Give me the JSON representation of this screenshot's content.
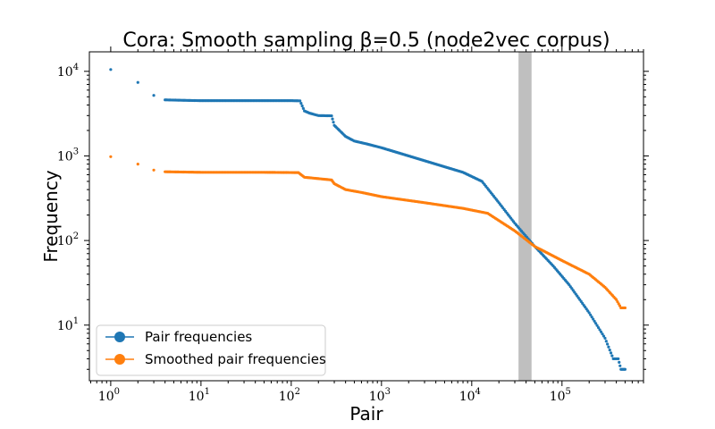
{
  "chart_data": {
    "type": "scatter",
    "title": "Cora: Smooth sampling β=0.5 (node2vec corpus)",
    "xlabel": "Pair",
    "ylabel": "Frequency",
    "xscale": "log",
    "yscale": "log",
    "xlim": [
      0.58,
      800000
    ],
    "ylim": [
      2.2,
      17000
    ],
    "x_ticks": [
      {
        "value": 1,
        "base": "10",
        "exp": "0"
      },
      {
        "value": 10,
        "base": "10",
        "exp": "1"
      },
      {
        "value": 100,
        "base": "10",
        "exp": "2"
      },
      {
        "value": 1000,
        "base": "10",
        "exp": "3"
      },
      {
        "value": 10000,
        "base": "10",
        "exp": "4"
      },
      {
        "value": 100000,
        "base": "10",
        "exp": "5"
      }
    ],
    "y_ticks": [
      {
        "value": 10,
        "base": "10",
        "exp": "1"
      },
      {
        "value": 100,
        "base": "10",
        "exp": "2"
      },
      {
        "value": 1000,
        "base": "10",
        "exp": "3"
      },
      {
        "value": 10000,
        "base": "10",
        "exp": "4"
      }
    ],
    "shaded_band": {
      "x_start": 33000,
      "x_end": 46000,
      "color": "#bfbfbf"
    },
    "legend_position": "lower-left",
    "series": [
      {
        "name": "Pair frequencies",
        "color": "#1f77b4",
        "points": [
          [
            1,
            10500
          ],
          [
            2,
            7400
          ],
          [
            3,
            5200
          ],
          [
            4,
            4600
          ],
          [
            6,
            4550
          ],
          [
            10,
            4500
          ],
          [
            30,
            4500
          ],
          [
            100,
            4500
          ],
          [
            125,
            4480
          ],
          [
            140,
            3400
          ],
          [
            160,
            3200
          ],
          [
            200,
            3000
          ],
          [
            280,
            2980
          ],
          [
            300,
            2300
          ],
          [
            400,
            1700
          ],
          [
            500,
            1500
          ],
          [
            700,
            1380
          ],
          [
            1000,
            1250
          ],
          [
            2000,
            1000
          ],
          [
            4000,
            800
          ],
          [
            8000,
            640
          ],
          [
            13000,
            500
          ],
          [
            20000,
            280
          ],
          [
            30000,
            160
          ],
          [
            50000,
            85
          ],
          [
            80000,
            50
          ],
          [
            120000,
            30
          ],
          [
            200000,
            14
          ],
          [
            300000,
            7
          ],
          [
            370000,
            4
          ],
          [
            420000,
            4
          ],
          [
            450000,
            3
          ],
          [
            500000,
            3
          ]
        ]
      },
      {
        "name": "Smoothed pair frequencies",
        "color": "#ff7f0e",
        "points": [
          [
            1,
            980
          ],
          [
            2,
            800
          ],
          [
            3,
            680
          ],
          [
            4,
            650
          ],
          [
            10,
            640
          ],
          [
            50,
            640
          ],
          [
            120,
            635
          ],
          [
            140,
            560
          ],
          [
            280,
            520
          ],
          [
            300,
            470
          ],
          [
            400,
            400
          ],
          [
            600,
            370
          ],
          [
            1000,
            330
          ],
          [
            3000,
            280
          ],
          [
            8000,
            240
          ],
          [
            15000,
            210
          ],
          [
            30000,
            130
          ],
          [
            50000,
            85
          ],
          [
            100000,
            58
          ],
          [
            200000,
            40
          ],
          [
            300000,
            28
          ],
          [
            400000,
            20
          ],
          [
            450000,
            16
          ],
          [
            500000,
            16
          ]
        ]
      }
    ]
  }
}
